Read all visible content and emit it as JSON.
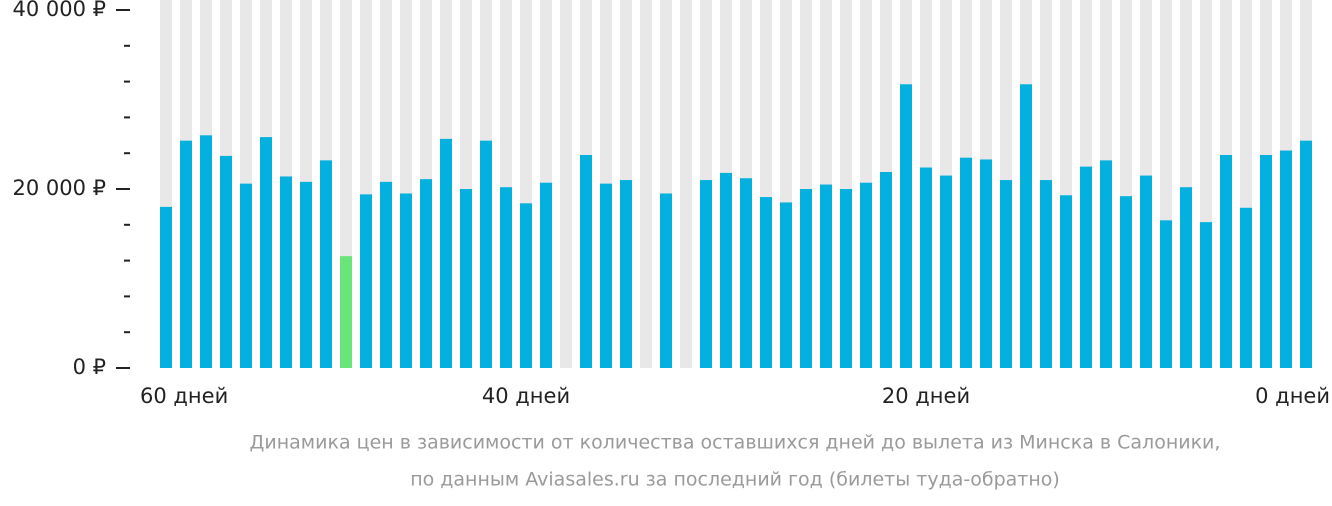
{
  "chart_data": {
    "type": "bar",
    "caption": [
      "Динамика цен в зависимости от количества оставшихся дней до вылета из Минска в Салоники,",
      "по данным Aviasales.ru за последний год (билеты туда-обратно)"
    ],
    "categories": [
      "60 дней",
      null,
      null,
      null,
      null,
      null,
      null,
      null,
      null,
      null,
      null,
      null,
      null,
      null,
      null,
      null,
      null,
      null,
      "40 дней",
      null,
      null,
      null,
      null,
      null,
      null,
      null,
      null,
      null,
      null,
      null,
      null,
      null,
      null,
      null,
      null,
      null,
      null,
      null,
      "20 дней",
      null,
      null,
      null,
      null,
      null,
      null,
      null,
      null,
      null,
      null,
      null,
      null,
      null,
      null,
      null,
      null,
      null,
      null,
      "0 дней"
    ],
    "values": [
      18000,
      25400,
      26000,
      23700,
      20600,
      25800,
      21400,
      20800,
      23200,
      12500,
      19400,
      20800,
      19500,
      21100,
      25600,
      20000,
      25400,
      20200,
      18400,
      20700,
      null,
      23800,
      20600,
      21000,
      null,
      19500,
      null,
      21000,
      21800,
      21200,
      19100,
      18500,
      20000,
      20500,
      20000,
      20700,
      21900,
      31700,
      22400,
      21500,
      23500,
      23300,
      21000,
      31700,
      21000,
      19300,
      22500,
      23200,
      19200,
      21500,
      16500,
      20200,
      16300,
      23800,
      17900,
      23800,
      24300,
      25400
    ],
    "color": "#04b1de",
    "highlight": {
      "index": 9,
      "color": "#6be57a"
    },
    "background_color": "#e8e8e8",
    "ylim": [
      0,
      40000
    ],
    "yticks": [
      {
        "value": 0,
        "label": "0 ₽"
      },
      {
        "value": 20000,
        "label": "20 000 ₽"
      },
      {
        "value": 40000,
        "label": "40 000 ₽"
      }
    ],
    "minor_yticks": [
      4000,
      8000,
      12000,
      16000,
      24000,
      28000,
      32000,
      36000
    ]
  }
}
